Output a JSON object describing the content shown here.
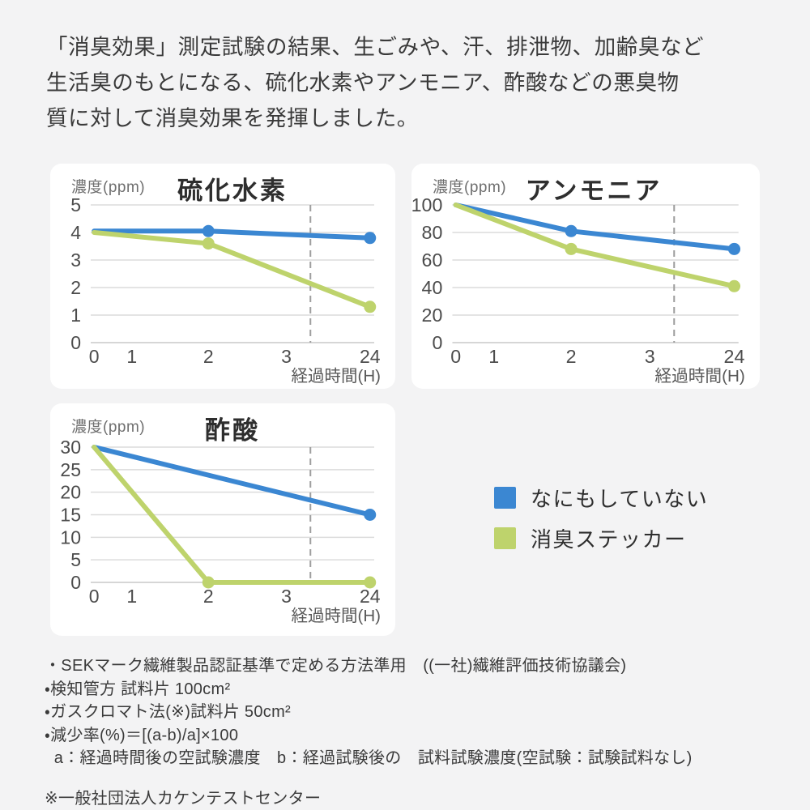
{
  "page": {
    "background_color": "#f3f3f4",
    "card_color": "#ffffff"
  },
  "header": {
    "text": "「消臭効果」測定試験の結果、生ごみや、汗、排泄物、加齢臭など\n生活臭のもとになる、硫化水素やアンモニア、酢酸などの悪臭物\n質に対して消臭効果を発揮しました。"
  },
  "legend": {
    "items": [
      {
        "label": "なにもしていない",
        "color": "#3b87d2"
      },
      {
        "label": "消臭ステッカー",
        "color": "#bed36c"
      }
    ]
  },
  "footnotes": {
    "lines": [
      "・SEKマーク繊維製品認証基準で定める方法準用　((一社)繊維評価技術協議会)",
      "・検知管方 試料片 100cm²",
      "・ガスクロマト法(※)試料片 50cm²",
      "・減少率(%)＝[(a-b)/a]×100",
      "  a：経過時間後の空試験濃度　b：経過試験後の　試料試験濃度(空試験：試験試料なし)"
    ],
    "note": "※一般社団法人カケンテストセンター"
  },
  "chart_data": [
    {
      "type": "line",
      "title": "硫化水素",
      "ylabel": "濃度(ppm)",
      "xlabel": "経過時間(H)",
      "ylim": [
        0,
        5
      ],
      "y_ticks": [
        0,
        1,
        2,
        3,
        4,
        5
      ],
      "x_ticks": [
        "0",
        "1",
        "2",
        "3",
        "24"
      ],
      "axis_break_between": [
        "3",
        "24"
      ],
      "grid": true,
      "legend_position": "external",
      "series": [
        {
          "name": "なにもしていない",
          "color": "#3b87d2",
          "x": [
            0,
            2,
            24
          ],
          "values": [
            4.05,
            4.05,
            3.8
          ],
          "markers_at": [
            2,
            24
          ]
        },
        {
          "name": "消臭ステッカー",
          "color": "#bed36c",
          "x": [
            0,
            2,
            24
          ],
          "values": [
            4,
            3.6,
            1.3
          ],
          "markers_at": [
            2,
            24
          ]
        }
      ]
    },
    {
      "type": "line",
      "title": "アンモニア",
      "ylabel": "濃度(ppm)",
      "xlabel": "経過時間(H)",
      "ylim": [
        0,
        100
      ],
      "y_ticks": [
        0,
        20,
        40,
        60,
        80,
        100
      ],
      "x_ticks": [
        "0",
        "1",
        "2",
        "3",
        "24"
      ],
      "axis_break_between": [
        "3",
        "24"
      ],
      "grid": true,
      "legend_position": "external",
      "series": [
        {
          "name": "なにもしていない",
          "color": "#3b87d2",
          "x": [
            0,
            2,
            24
          ],
          "values": [
            100,
            81,
            68
          ],
          "markers_at": [
            2,
            24
          ]
        },
        {
          "name": "消臭ステッカー",
          "color": "#bed36c",
          "x": [
            0,
            2,
            24
          ],
          "values": [
            100,
            68,
            41
          ],
          "markers_at": [
            2,
            24
          ]
        }
      ]
    },
    {
      "type": "line",
      "title": "酢酸",
      "ylabel": "濃度(ppm)",
      "xlabel": "経過時間(H)",
      "ylim": [
        0,
        30
      ],
      "y_ticks": [
        0,
        5,
        10,
        15,
        20,
        25,
        30
      ],
      "x_ticks": [
        "0",
        "1",
        "2",
        "3",
        "24"
      ],
      "axis_break_between": [
        "3",
        "24"
      ],
      "grid": true,
      "legend_position": "external",
      "series": [
        {
          "name": "なにもしていない",
          "color": "#3b87d2",
          "x": [
            0,
            24
          ],
          "values": [
            30,
            15
          ],
          "markers_at": [
            24
          ]
        },
        {
          "name": "消臭ステッカー",
          "color": "#bed36c",
          "x": [
            0,
            2,
            24
          ],
          "values": [
            30,
            0,
            0
          ],
          "markers_at": [
            2,
            24
          ]
        }
      ]
    }
  ],
  "style": {
    "gridline_color": "#dcdcdc",
    "baseline_color": "#c9c9c9",
    "dashed_line_color": "#9e9e9e",
    "tick_label_color": "#4c4c4c",
    "xlabel_color": "#595959"
  }
}
